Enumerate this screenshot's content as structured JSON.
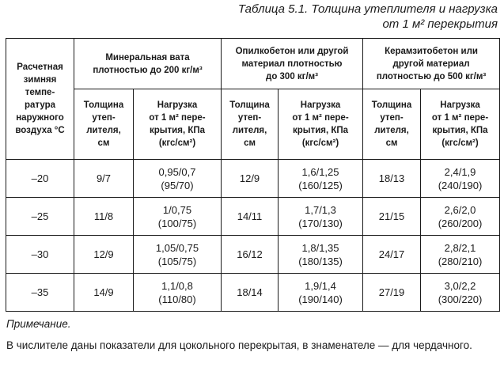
{
  "caption": {
    "line1": "Таблица 5.1. Толщина утеплителя и нагрузка",
    "line2": "от 1 м² перекрытия"
  },
  "table": {
    "first_header": "Расчетная\nзимняя\nтемпе-\nратура\nнаружного\nвоздуха °С",
    "groups": [
      "Минеральная вата\nплотностью до 200 кг/м³",
      "Опилкобетон или другой\nматериал плотностью\nдо 300 кг/м³",
      "Керамзитобетон или\nдругой материал\nплотностью до 500 кг/м³"
    ],
    "sub_thickness": "Толщина\nутеп-\nлителя,\nсм",
    "sub_load": "Нагрузка\nот 1 м² пере-\nкрытия, КПа\n(кгс/см²)",
    "rows": [
      {
        "temp": "–20",
        "c": [
          "9/7",
          "0,95/0,7\n(95/70)",
          "12/9",
          "1,6/1,25\n(160/125)",
          "18/13",
          "2,4/1,9\n(240/190)"
        ]
      },
      {
        "temp": "–25",
        "c": [
          "11/8",
          "1/0,75\n(100/75)",
          "14/11",
          "1,7/1,3\n(170/130)",
          "21/15",
          "2,6/2,0\n(260/200)"
        ]
      },
      {
        "temp": "–30",
        "c": [
          "12/9",
          "1,05/0,75\n(105/75)",
          "16/12",
          "1,8/1,35\n(180/135)",
          "24/17",
          "2,8/2,1\n(280/210)"
        ]
      },
      {
        "temp": "–35",
        "c": [
          "14/9",
          "1,1/0,8\n(110/80)",
          "18/14",
          "1,9/1,4\n(190/140)",
          "27/19",
          "3,0/2,2\n(300/220)"
        ]
      }
    ]
  },
  "note": {
    "title": "Примечание.",
    "text": "В числителе даны показатели для цокольного перекрытая, в знаменателе — для чердачного."
  }
}
